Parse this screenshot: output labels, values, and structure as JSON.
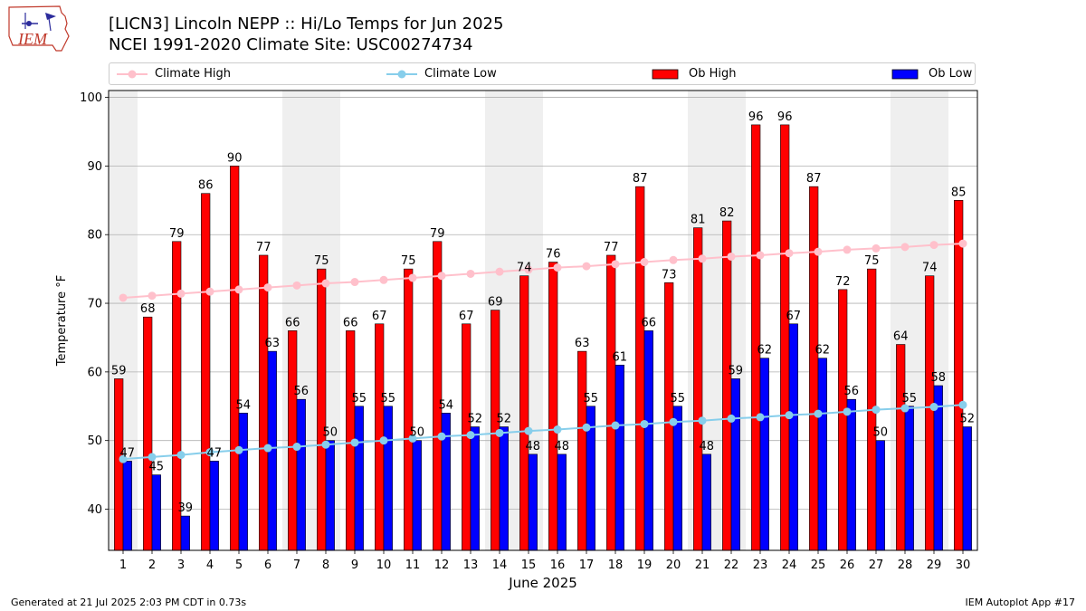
{
  "logo": {
    "text": "IEM"
  },
  "title": {
    "line1": "[LICN3] Lincoln NEPP :: Hi/Lo Temps for Jun 2025",
    "line2": "NCEI 1991-2020 Climate Site: USC00274734"
  },
  "legend": {
    "items": [
      {
        "label": "Climate High",
        "kind": "line",
        "color": "#ffc0cb"
      },
      {
        "label": "Climate Low",
        "kind": "line",
        "color": "#87ceeb"
      },
      {
        "label": "Ob High",
        "kind": "bar",
        "color": "#ff0000"
      },
      {
        "label": "Ob Low",
        "kind": "bar",
        "color": "#0000ff"
      }
    ]
  },
  "chart_data": {
    "type": "bar",
    "title": "[LICN3] Lincoln NEPP :: Hi/Lo Temps for Jun 2025",
    "xlabel": "June 2025",
    "ylabel": "Temperature °F",
    "ylim": [
      34,
      101
    ],
    "yticks": [
      40,
      50,
      60,
      70,
      80,
      90,
      100
    ],
    "grid": true,
    "legend_position": "top",
    "shaded_weekend_days": [
      1,
      7,
      8,
      14,
      15,
      21,
      22,
      28,
      29
    ],
    "categories": [
      "1",
      "2",
      "3",
      "4",
      "5",
      "6",
      "7",
      "8",
      "9",
      "10",
      "11",
      "12",
      "13",
      "14",
      "15",
      "16",
      "17",
      "18",
      "19",
      "20",
      "21",
      "22",
      "23",
      "24",
      "25",
      "26",
      "27",
      "28",
      "29",
      "30"
    ],
    "series": [
      {
        "name": "Ob High",
        "kind": "bar",
        "color": "#ff0000",
        "values": [
          59,
          68,
          79,
          86,
          90,
          77,
          66,
          75,
          66,
          67,
          75,
          79,
          67,
          69,
          74,
          76,
          63,
          77,
          87,
          73,
          81,
          82,
          96,
          96,
          87,
          72,
          75,
          64,
          74,
          85
        ]
      },
      {
        "name": "Ob Low",
        "kind": "bar",
        "color": "#0000ff",
        "values": [
          47,
          45,
          39,
          47,
          54,
          63,
          56,
          50,
          55,
          55,
          50,
          54,
          52,
          52,
          48,
          48,
          55,
          61,
          66,
          55,
          48,
          59,
          62,
          67,
          62,
          56,
          50,
          55,
          58,
          52
        ]
      },
      {
        "name": "Climate High",
        "kind": "line",
        "color": "#ffc0cb",
        "values": [
          70.8,
          71.1,
          71.4,
          71.7,
          72.0,
          72.3,
          72.6,
          72.9,
          73.1,
          73.4,
          73.7,
          74.0,
          74.3,
          74.6,
          74.9,
          75.2,
          75.4,
          75.7,
          76.0,
          76.3,
          76.5,
          76.8,
          77.0,
          77.3,
          77.5,
          77.8,
          78.0,
          78.2,
          78.5,
          78.7
        ]
      },
      {
        "name": "Climate Low",
        "kind": "line",
        "color": "#87ceeb",
        "values": [
          47.3,
          47.6,
          47.9,
          48.3,
          48.6,
          48.9,
          49.1,
          49.4,
          49.7,
          50.0,
          50.3,
          50.6,
          50.8,
          51.1,
          51.4,
          51.6,
          51.9,
          52.2,
          52.4,
          52.7,
          52.9,
          53.2,
          53.4,
          53.7,
          53.9,
          54.2,
          54.5,
          54.7,
          54.9,
          55.2
        ]
      }
    ]
  },
  "footer": {
    "left": "Generated at 21 Jul 2025 2:03 PM CDT in 0.73s",
    "right": "IEM Autoplot App #17"
  }
}
